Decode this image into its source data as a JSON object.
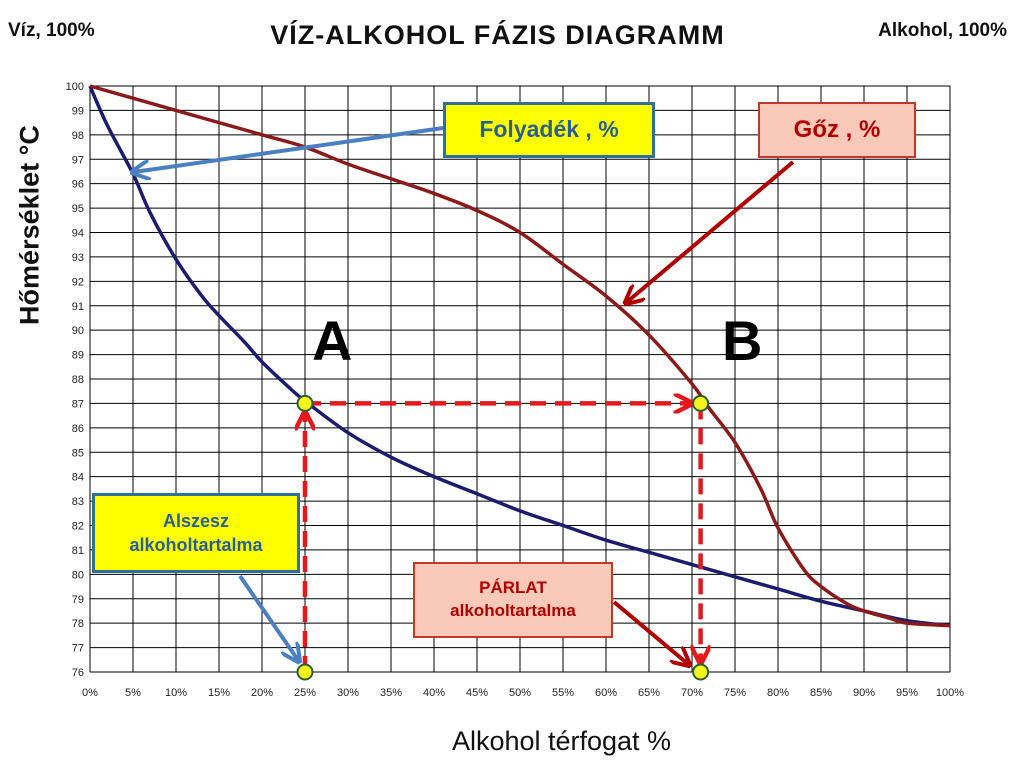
{
  "title": "VÍZ-ALKOHOL  FÁZIS  DIAGRAMM",
  "corner_left": "Víz, 100%",
  "corner_right": "Alkohol, 100%",
  "annotations": {
    "liquid_box": "Folyadék , %",
    "vapor_box": "Gőz , %",
    "mash_box_line1": "Alszesz",
    "mash_box_line2": "alkoholtartalma",
    "distillate_box_line1": "PÁRLAT",
    "distillate_box_line2": "alkoholtartalma",
    "point_a": "A",
    "point_b": "B"
  },
  "colors": {
    "liquid_curve": "#1c1c6e",
    "vapor_curve": "#8b1a1a",
    "arrow_blue": "#4a7fc1",
    "arrow_red": "#b00000",
    "dashed_guides": "#e3191c",
    "marker_fill": "#f5f51e",
    "grid": "#000000"
  },
  "chart_data": {
    "type": "line",
    "title": "VÍZ-ALKOHOL  FÁZIS  DIAGRAMM",
    "xlabel": "Alkohol térfogat %",
    "ylabel": "Hőmérséklet   °C",
    "xlim": [
      0,
      100
    ],
    "ylim": [
      76,
      100
    ],
    "x_ticks": [
      "0%",
      "5%",
      "10%",
      "15%",
      "20%",
      "25%",
      "30%",
      "35%",
      "40%",
      "45%",
      "50%",
      "55%",
      "60%",
      "65%",
      "70%",
      "75%",
      "80%",
      "85%",
      "90%",
      "95%",
      "100%"
    ],
    "y_ticks": [
      "76",
      "77",
      "78",
      "79",
      "80",
      "81",
      "82",
      "83",
      "84",
      "85",
      "86",
      "87",
      "88",
      "89",
      "90",
      "91",
      "92",
      "93",
      "94",
      "95",
      "96",
      "97",
      "98",
      "99",
      "100"
    ],
    "grid": true,
    "series": [
      {
        "name": "Folyadék , %",
        "x": [
          0,
          2,
          5,
          7,
          10,
          13,
          15,
          18,
          20,
          23,
          25,
          30,
          35,
          40,
          45,
          50,
          55,
          60,
          65,
          70,
          75,
          80,
          85,
          90,
          95,
          100
        ],
        "y": [
          100,
          98.4,
          96.4,
          94.8,
          92.9,
          91.4,
          90.6,
          89.5,
          88.7,
          87.7,
          87.1,
          85.8,
          84.8,
          84.0,
          83.3,
          82.6,
          82.0,
          81.4,
          80.9,
          80.4,
          79.9,
          79.4,
          78.9,
          78.5,
          78.1,
          77.9
        ]
      },
      {
        "name": "Gőz , %",
        "x": [
          0,
          5,
          10,
          15,
          20,
          25,
          30,
          35,
          40,
          45,
          50,
          55,
          60,
          65,
          70,
          72,
          75,
          78,
          80,
          83,
          85,
          88,
          90,
          93,
          95,
          100
        ],
        "y": [
          100,
          99.5,
          99.0,
          98.5,
          98.0,
          97.5,
          96.8,
          96.2,
          95.6,
          94.9,
          94.0,
          92.7,
          91.4,
          89.8,
          87.8,
          86.8,
          85.4,
          83.5,
          81.9,
          80.2,
          79.5,
          78.8,
          78.5,
          78.2,
          78.0,
          77.9
        ]
      }
    ],
    "points": [
      {
        "label": "A",
        "x": 25,
        "y": 87
      },
      {
        "label": "B",
        "x": 71,
        "y": 87
      }
    ],
    "guides": [
      {
        "from": [
          25,
          76
        ],
        "to": [
          25,
          87
        ]
      },
      {
        "from": [
          25,
          87
        ],
        "to": [
          71,
          87
        ]
      },
      {
        "from": [
          71,
          87
        ],
        "to": [
          71,
          76
        ]
      }
    ],
    "markers": [
      {
        "x": 25,
        "y": 76
      },
      {
        "x": 25,
        "y": 87
      },
      {
        "x": 71,
        "y": 87
      },
      {
        "x": 71,
        "y": 76
      }
    ]
  }
}
